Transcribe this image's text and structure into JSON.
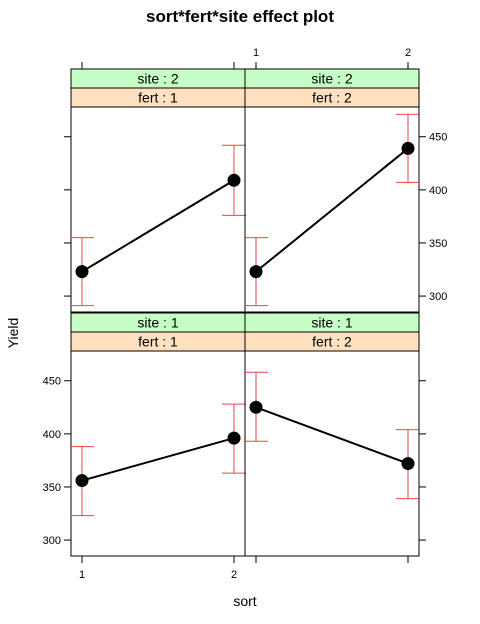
{
  "chart_data": {
    "type": "line",
    "title": "sort*fert*site effect plot",
    "xlabel": "sort",
    "ylabel": "Yield",
    "x_categories": [
      "1",
      "2"
    ],
    "ylim": [
      285,
      478
    ],
    "y_ticks": [
      300,
      350,
      400,
      450
    ],
    "panels": [
      {
        "site_label": "site : 2",
        "fert_label": "fert : 1",
        "fit": [
          323,
          409
        ],
        "lower": [
          291,
          376
        ],
        "upper": [
          355,
          442
        ]
      },
      {
        "site_label": "site : 2",
        "fert_label": "fert : 2",
        "fit": [
          323,
          439
        ],
        "lower": [
          291,
          407
        ],
        "upper": [
          355,
          471
        ]
      },
      {
        "site_label": "site : 1",
        "fert_label": "fert : 1",
        "fit": [
          356,
          396
        ],
        "lower": [
          323,
          363
        ],
        "upper": [
          388,
          428
        ]
      },
      {
        "site_label": "site : 1",
        "fert_label": "fert : 2",
        "fit": [
          425,
          372
        ],
        "lower": [
          393,
          339
        ],
        "upper": [
          458,
          404
        ]
      }
    ],
    "colors": {
      "site_strip": "#c6ffc6",
      "fert_strip": "#ffe0c0",
      "line": "#000000",
      "ci": "#e8474a"
    }
  }
}
